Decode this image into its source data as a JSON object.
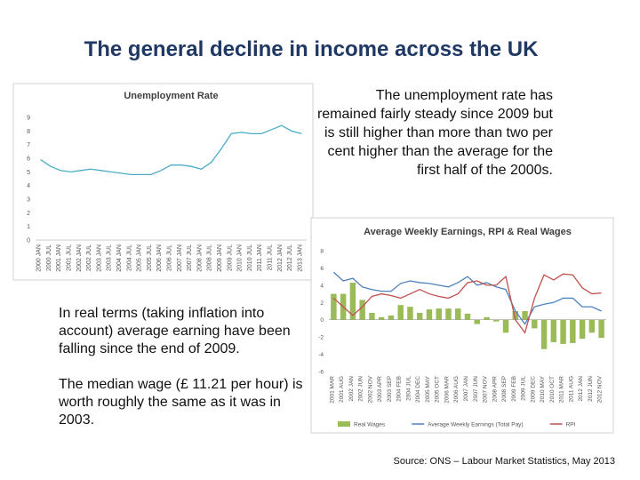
{
  "title": "The general decline in income across the UK",
  "text_right": "The unemployment rate has remained fairly steady since 2009 but is still higher than more than two per cent higher than the average for the first half of the 2000s.",
  "text_left": [
    "In real terms (taking inflation into account) average earning have been falling since the end of 2009.",
    "The median wage (£ 11.21 per hour) is worth roughly the same as it was in 2003."
  ],
  "source": "Source: ONS – Labour Market Statistics, May 2013",
  "charts": [
    {
      "type": "line",
      "title": "Unemployment Rate",
      "categories": [
        "2000 JAN",
        "2000 JUL",
        "2001 JAN",
        "2001 JUL",
        "2002 JAN",
        "2002 JUL",
        "2003 JAN",
        "2003 JUL",
        "2004 JAN",
        "2004 JUL",
        "2005 JAN",
        "2005 JUL",
        "2006 JAN",
        "2006 JUL",
        "2007 JAN",
        "2007 JUL",
        "2008 JAN",
        "2008 JUL",
        "2009 JAN",
        "2009 JUL",
        "2010 JAN",
        "2010 JUL",
        "2011 JAN",
        "2011 JUL",
        "2012 JAN",
        "2012 JUL",
        "2013 JAN"
      ],
      "series": [
        {
          "type": "line",
          "color": "#4bacc6",
          "values": [
            5.9,
            5.4,
            5.1,
            5.0,
            5.1,
            5.2,
            5.1,
            5.0,
            4.9,
            4.8,
            4.8,
            4.8,
            5.1,
            5.5,
            5.5,
            5.4,
            5.2,
            5.7,
            6.7,
            7.8,
            7.9,
            7.8,
            7.8,
            8.1,
            8.4,
            8.0,
            7.8
          ]
        }
      ],
      "ylim": [
        0,
        9
      ],
      "yticks": [
        0,
        1,
        2,
        3,
        4,
        5,
        6,
        7,
        8,
        9
      ],
      "grid": false
    },
    {
      "type": "combo",
      "title": "Average Weekly Earnings, RPI & Real Wages",
      "categories": [
        "2001 MAR",
        "2001 AUG",
        "2002 JAN",
        "2002 JUN",
        "2002 NOV",
        "2003 APR",
        "2003 SEP",
        "2004 FEB",
        "2004 JUL",
        "2004 DEC",
        "2005 MAY",
        "2005 OCT",
        "2006 MAR",
        "2006 AUG",
        "2007 JAN",
        "2007 JUN",
        "2007 NOV",
        "2008 APR",
        "2008 SEP",
        "2009 FEB",
        "2009 JUL",
        "2009 DEC",
        "2010 MAY",
        "2010 OCT",
        "2011 MAR",
        "2011 AUG",
        "2012 JAN",
        "2012 JUN",
        "2012 NOV"
      ],
      "series": [
        {
          "name": "Real Wages",
          "type": "bar",
          "color": "#9bbb59",
          "values": [
            3.0,
            3.0,
            4.3,
            2.3,
            0.8,
            0.3,
            0.5,
            1.7,
            1.5,
            0.8,
            1.2,
            1.3,
            1.3,
            1.3,
            0.7,
            -0.5,
            0.3,
            -0.2,
            -1.5,
            1.0,
            1.0,
            -1.0,
            -3.4,
            -2.6,
            -2.8,
            -2.7,
            -2.2,
            -1.5,
            -2.1
          ]
        },
        {
          "name": "Average Weekly Earnings (Total Pay)",
          "type": "line",
          "color": "#4f81bd",
          "values": [
            5.5,
            4.5,
            4.8,
            3.8,
            3.5,
            3.3,
            3.3,
            4.2,
            4.5,
            4.3,
            4.2,
            4.0,
            3.8,
            4.3,
            5.0,
            4.0,
            4.3,
            3.8,
            3.5,
            1.0,
            -0.5,
            1.5,
            1.8,
            2.0,
            2.5,
            2.5,
            1.5,
            1.5,
            1.0
          ]
        },
        {
          "name": "RPI",
          "type": "line",
          "color": "#c0504d",
          "values": [
            2.5,
            1.5,
            0.5,
            1.5,
            2.7,
            3.0,
            2.8,
            2.5,
            3.0,
            3.5,
            3.0,
            2.7,
            2.5,
            3.0,
            4.3,
            4.5,
            4.0,
            4.0,
            5.0,
            0.0,
            -1.5,
            2.5,
            5.2,
            4.6,
            5.3,
            5.2,
            3.7,
            3.0,
            3.1
          ]
        }
      ],
      "ylim": [
        -6,
        8
      ],
      "yticks": [
        -6,
        -4,
        -2,
        0,
        2,
        4,
        6,
        8
      ],
      "grid": false
    }
  ]
}
